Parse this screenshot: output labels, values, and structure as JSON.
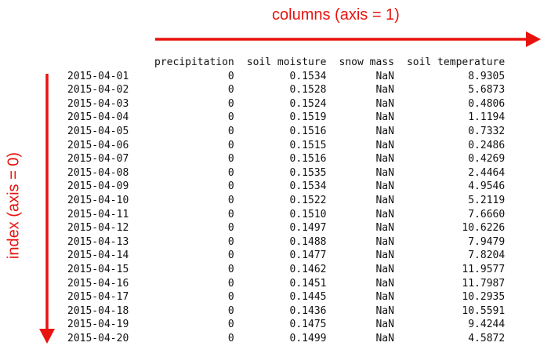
{
  "labels": {
    "columns_axis": "columns (axis = 1)",
    "index_axis": "index (axis = 0)"
  },
  "colors": {
    "accent": "#e8130f",
    "text": "#111111"
  },
  "table": {
    "columns": [
      "precipitation",
      "soil moisture",
      "snow mass",
      "soil temperature"
    ],
    "rows": [
      [
        "2015-04-01",
        "0",
        "0.1534",
        "NaN",
        "8.9305"
      ],
      [
        "2015-04-02",
        "0",
        "0.1528",
        "NaN",
        "5.6873"
      ],
      [
        "2015-04-03",
        "0",
        "0.1524",
        "NaN",
        "0.4806"
      ],
      [
        "2015-04-04",
        "0",
        "0.1519",
        "NaN",
        "1.1194"
      ],
      [
        "2015-04-05",
        "0",
        "0.1516",
        "NaN",
        "0.7332"
      ],
      [
        "2015-04-06",
        "0",
        "0.1515",
        "NaN",
        "0.2486"
      ],
      [
        "2015-04-07",
        "0",
        "0.1516",
        "NaN",
        "0.4269"
      ],
      [
        "2015-04-08",
        "0",
        "0.1535",
        "NaN",
        "2.4464"
      ],
      [
        "2015-04-09",
        "0",
        "0.1534",
        "NaN",
        "4.9546"
      ],
      [
        "2015-04-10",
        "0",
        "0.1522",
        "NaN",
        "5.2119"
      ],
      [
        "2015-04-11",
        "0",
        "0.1510",
        "NaN",
        "7.6660"
      ],
      [
        "2015-04-12",
        "0",
        "0.1497",
        "NaN",
        "10.6226"
      ],
      [
        "2015-04-13",
        "0",
        "0.1488",
        "NaN",
        "7.9479"
      ],
      [
        "2015-04-14",
        "0",
        "0.1477",
        "NaN",
        "7.8204"
      ],
      [
        "2015-04-15",
        "0",
        "0.1462",
        "NaN",
        "11.9577"
      ],
      [
        "2015-04-16",
        "0",
        "0.1451",
        "NaN",
        "11.7987"
      ],
      [
        "2015-04-17",
        "0",
        "0.1445",
        "NaN",
        "10.2935"
      ],
      [
        "2015-04-18",
        "0",
        "0.1436",
        "NaN",
        "10.5591"
      ],
      [
        "2015-04-19",
        "0",
        "0.1475",
        "NaN",
        "9.4244"
      ],
      [
        "2015-04-20",
        "0",
        "0.1499",
        "NaN",
        "4.5872"
      ]
    ]
  }
}
